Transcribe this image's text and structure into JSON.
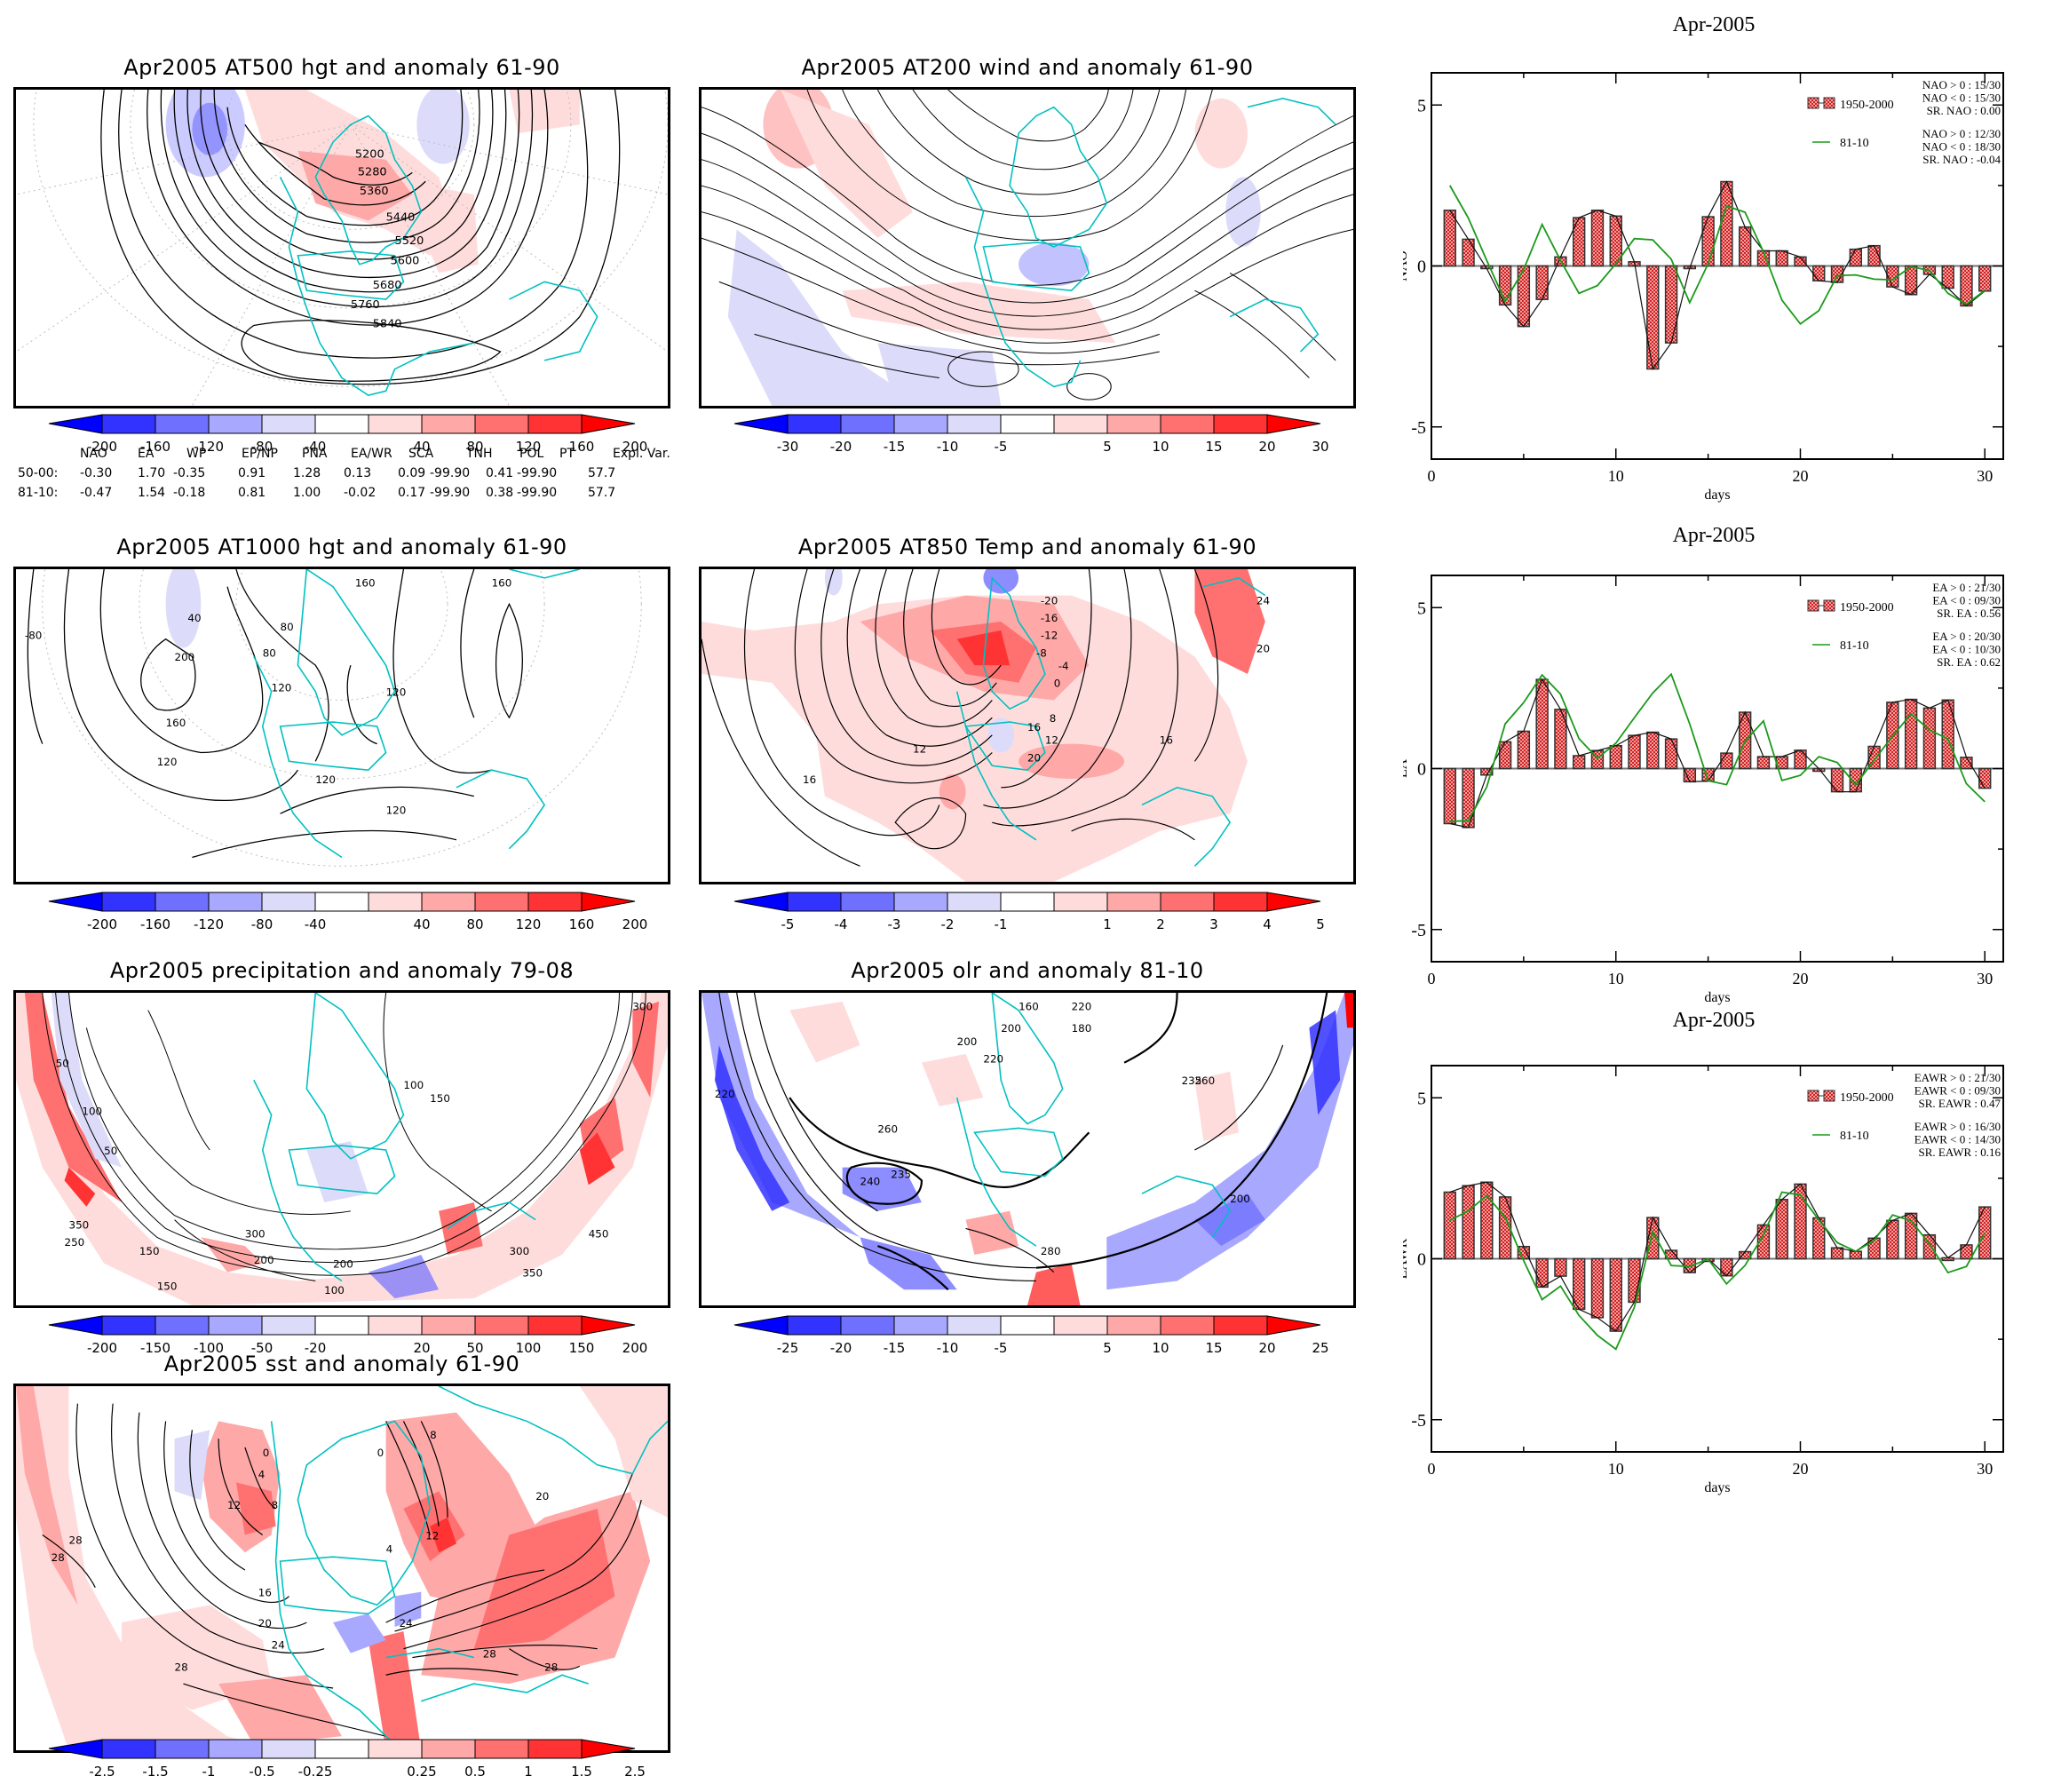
{
  "maps": [
    {
      "id": "at500",
      "title": "Apr2005 AT500 hgt and anomaly 61-90",
      "contour_labels": [
        "5200",
        "5280",
        "5360",
        "5440",
        "5520",
        "5600",
        "5680",
        "5760",
        "5840"
      ],
      "colorbar": [
        "-200",
        "-160",
        "-120",
        "-80",
        "-40",
        "40",
        "80",
        "120",
        "160",
        "200"
      ]
    },
    {
      "id": "at200",
      "title": "Apr2005 AT200 wind and anomaly 61-90",
      "contour_labels": [],
      "colorbar": [
        "-30",
        "-20",
        "-15",
        "-10",
        "-5",
        "5",
        "10",
        "15",
        "20",
        "30"
      ]
    },
    {
      "id": "at1000",
      "title": "Apr2005 AT1000 hgt and anomaly 61-90",
      "contour_labels": [
        "40",
        "80",
        "120",
        "160",
        "200",
        "-80",
        "160",
        "80",
        "120",
        "120",
        "120",
        "160",
        "120"
      ],
      "colorbar": [
        "-200",
        "-160",
        "-120",
        "-80",
        "-40",
        "40",
        "80",
        "120",
        "160",
        "200"
      ]
    },
    {
      "id": "at850",
      "title": "Apr2005 AT850 Temp and anomaly 61-90",
      "contour_labels": [
        "-20",
        "-16",
        "-12",
        "-8",
        "-4",
        "0",
        "8",
        "12",
        "16",
        "20",
        "24",
        "20",
        "16",
        "12",
        "16"
      ],
      "colorbar": [
        "-5",
        "-4",
        "-3",
        "-2",
        "-1",
        "1",
        "2",
        "3",
        "4",
        "5"
      ]
    },
    {
      "id": "precip",
      "title": "Apr2005 precipitation and anomaly 79-08",
      "contour_labels": [
        "50",
        "100",
        "50",
        "100",
        "150",
        "50",
        "100",
        "50",
        "150",
        "250",
        "350",
        "250",
        "200",
        "300",
        "200",
        "100",
        "150",
        "50",
        "300",
        "350",
        "450",
        "450",
        "300"
      ],
      "colorbar": [
        "-200",
        "-150",
        "-100",
        "-50",
        "-20",
        "20",
        "50",
        "100",
        "150",
        "200"
      ]
    },
    {
      "id": "olr",
      "title": "Apr2005 olr and anomaly 81-10",
      "contour_labels": [
        "160",
        "200",
        "220",
        "180",
        "200",
        "220",
        "235",
        "260",
        "240",
        "280",
        "220",
        "200",
        "235",
        "260"
      ],
      "colorbar": [
        "-25",
        "-20",
        "-15",
        "-10",
        "-5",
        "5",
        "10",
        "15",
        "20",
        "25"
      ]
    },
    {
      "id": "sst",
      "title": "Apr2005 sst and anomaly 61-90",
      "contour_labels": [
        "0",
        "4",
        "8",
        "12",
        "16",
        "20",
        "24",
        "28",
        "28",
        "28",
        "0",
        "4",
        "8",
        "12",
        "20",
        "24",
        "28",
        "28"
      ],
      "colorbar": [
        "-2.5",
        "-1.5",
        "-1",
        "-0.5",
        "-0.25",
        "0.25",
        "0.5",
        "1",
        "1.5",
        "2.5"
      ]
    }
  ],
  "colorbar_colors": [
    "#0000ff",
    "#3333ff",
    "#7070ff",
    "#a8a8ff",
    "#dcdcfa",
    "#ffffff",
    "#ffdcdc",
    "#ffa8a8",
    "#ff7070",
    "#ff3333",
    "#ff0000"
  ],
  "eof_table": {
    "headers": [
      "NAO",
      "EA",
      "WP",
      "EP/NP",
      "PNA",
      "EA/WR",
      "SCA",
      "TNH",
      "POL",
      "PT",
      "Expl. Var."
    ],
    "rows": [
      {
        "label": "50-00:",
        "values": [
          "-0.30",
          "1.70",
          "-0.35",
          "0.91",
          "1.28",
          "0.13",
          "0.09",
          "-99.90",
          "0.41",
          "-99.90",
          "57.7"
        ]
      },
      {
        "label": "81-10:",
        "values": [
          "-0.47",
          "1.54",
          "-0.18",
          "0.81",
          "1.00",
          "-0.02",
          "0.17",
          "-99.90",
          "0.38",
          "-99.90",
          "57.7"
        ]
      }
    ]
  },
  "chart_data": [
    {
      "type": "bar",
      "title": "Apr-2005",
      "xlabel": "days",
      "ylabel": "NAO",
      "xlim": [
        0,
        31
      ],
      "ylim": [
        -6,
        6
      ],
      "xticks": [
        0,
        10,
        20,
        30
      ],
      "yticks": [
        5,
        0,
        -5
      ],
      "x": [
        1,
        2,
        3,
        4,
        5,
        6,
        7,
        8,
        9,
        10,
        11,
        12,
        13,
        14,
        15,
        16,
        17,
        18,
        19,
        20,
        21,
        22,
        23,
        24,
        25,
        26,
        27,
        28,
        29,
        30
      ],
      "series": [
        {
          "name": "1950-2000",
          "kind": "bar",
          "color": "#e06060",
          "values": [
            1.73,
            0.83,
            -0.08,
            -1.21,
            -1.88,
            -1.04,
            0.28,
            1.5,
            1.73,
            1.55,
            0.13,
            -3.2,
            -2.39,
            -0.07,
            1.53,
            2.62,
            1.21,
            0.47,
            0.47,
            0.28,
            -0.46,
            -0.51,
            0.52,
            0.63,
            -0.65,
            -0.89,
            -0.26,
            -0.69,
            -1.24,
            -0.78
          ]
        },
        {
          "name": "81-10",
          "kind": "line",
          "color": "#1a9a1a",
          "values": [
            2.5,
            1.49,
            0.17,
            -1.1,
            -0.11,
            1.29,
            0.17,
            -0.85,
            -0.61,
            0.07,
            0.85,
            0.81,
            0.21,
            -1.14,
            0.07,
            1.86,
            1.67,
            0.44,
            -1.06,
            -1.8,
            -1.39,
            -0.3,
            -0.28,
            -0.41,
            -0.43,
            -0.02,
            -0.14,
            -0.85,
            -1.19,
            -0.76
          ]
        }
      ],
      "stats": [
        [
          "NAO > 0 : 15/30",
          "NAO < 0 : 15/30",
          "SR. NAO :  0.00"
        ],
        [
          "NAO > 0 : 12/30",
          "NAO < 0 : 18/30",
          "SR. NAO : -0.04"
        ]
      ]
    },
    {
      "type": "bar",
      "title": "Apr-2005",
      "xlabel": "days",
      "ylabel": "EA",
      "xlim": [
        0,
        31
      ],
      "ylim": [
        -6,
        6
      ],
      "xticks": [
        0,
        10,
        20,
        30
      ],
      "yticks": [
        5,
        0,
        -5
      ],
      "x": [
        1,
        2,
        3,
        4,
        5,
        6,
        7,
        8,
        9,
        10,
        11,
        12,
        13,
        14,
        15,
        16,
        17,
        18,
        19,
        20,
        21,
        22,
        23,
        24,
        25,
        26,
        27,
        28,
        29,
        30
      ],
      "series": [
        {
          "name": "1950-2000",
          "kind": "bar",
          "color": "#e06060",
          "values": [
            -1.71,
            -1.83,
            -0.2,
            0.83,
            1.16,
            2.77,
            1.84,
            0.4,
            0.56,
            0.71,
            1.03,
            1.13,
            0.92,
            -0.41,
            -0.39,
            0.48,
            1.75,
            0.37,
            0.37,
            0.57,
            0.0,
            -0.72,
            -0.72,
            0.69,
            2.06,
            2.15,
            1.88,
            2.13,
            0.35,
            -0.61
          ]
        },
        {
          "name": "81-10",
          "kind": "line",
          "color": "#1a9a1a",
          "values": [
            -1.64,
            -1.62,
            -0.57,
            1.39,
            2.05,
            2.91,
            2.31,
            0.93,
            0.32,
            0.79,
            1.58,
            2.35,
            2.93,
            1.39,
            -0.38,
            -0.5,
            0.85,
            1.48,
            -0.37,
            -0.21,
            0.37,
            0.19,
            -0.5,
            0.26,
            1.01,
            1.7,
            1.2,
            0.92,
            -0.47,
            -1.03
          ]
        }
      ],
      "stats": [
        [
          "EA > 0 : 21/30",
          "EA < 0 : 09/30",
          "SR. EA :  0.56"
        ],
        [
          "EA > 0 : 20/30",
          "EA < 0 : 10/30",
          "SR. EA :  0.62"
        ]
      ]
    },
    {
      "type": "bar",
      "title": "Apr-2005",
      "xlabel": "days",
      "ylabel": "EAWR",
      "xlim": [
        0,
        31
      ],
      "ylim": [
        -6,
        6
      ],
      "xticks": [
        0,
        10,
        20,
        30
      ],
      "yticks": [
        5,
        0,
        -5
      ],
      "x": [
        1,
        2,
        3,
        4,
        5,
        6,
        7,
        8,
        9,
        10,
        11,
        12,
        13,
        14,
        15,
        16,
        17,
        18,
        19,
        20,
        21,
        22,
        23,
        24,
        25,
        26,
        27,
        28,
        29,
        30
      ],
      "series": [
        {
          "name": "1950-2000",
          "kind": "bar",
          "color": "#e06060",
          "values": [
            2.07,
            2.27,
            2.38,
            1.92,
            0.38,
            -0.88,
            -0.54,
            -1.57,
            -1.83,
            -2.25,
            -1.35,
            1.28,
            0.26,
            -0.43,
            0.0,
            -0.53,
            0.22,
            1.05,
            1.84,
            2.32,
            1.27,
            0.34,
            0.23,
            0.64,
            1.19,
            1.41,
            0.74,
            0.03,
            0.43,
            1.61
          ]
        },
        {
          "name": "81-10",
          "kind": "line",
          "color": "#1a9a1a",
          "values": [
            1.19,
            1.49,
            1.96,
            1.29,
            -0.06,
            -1.27,
            -0.85,
            -1.76,
            -2.38,
            -2.81,
            -1.51,
            0.84,
            -0.21,
            -0.24,
            -0.01,
            -0.78,
            -0.21,
            0.74,
            2.07,
            1.98,
            1.21,
            0.5,
            0.23,
            0.57,
            1.36,
            1.18,
            0.46,
            -0.43,
            -0.24,
            0.8
          ]
        }
      ],
      "stats": [
        [
          "EAWR > 0 : 21/30",
          "EAWR < 0 : 09/30",
          "SR. EAWR :  0.47"
        ],
        [
          "EAWR > 0 : 16/30",
          "EAWR < 0 : 14/30",
          "SR. EAWR :  0.16"
        ]
      ]
    }
  ]
}
